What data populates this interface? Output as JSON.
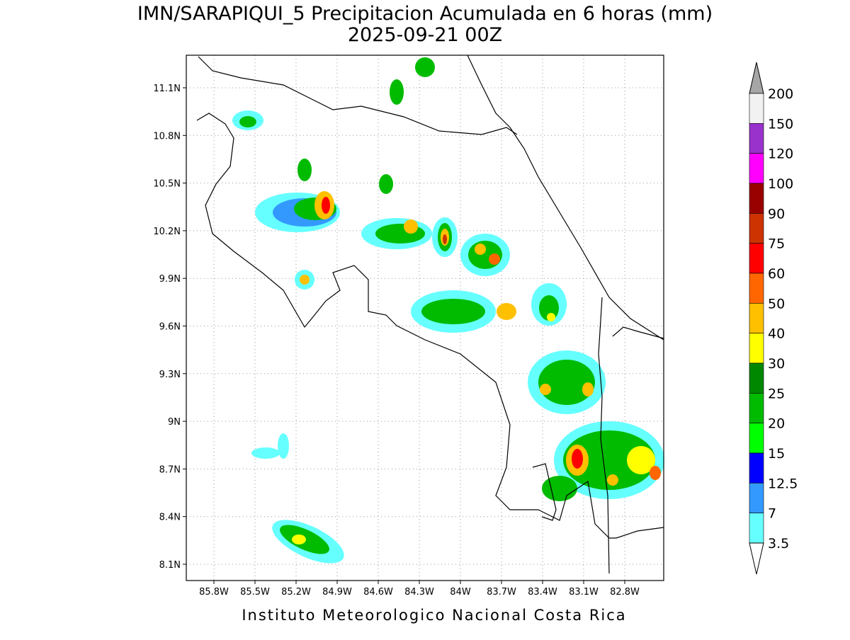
{
  "title": "IMN/SARAPIQUI_5 Precipitacion Acumulada en 6 horas (mm)",
  "subtitle": "2025-09-21 00Z",
  "x_ticks": [
    "85.8W",
    "85.5W",
    "85.2W",
    "84.9W",
    "84.6W",
    "84.3W",
    "84W",
    "83.7W",
    "83.4W",
    "83.1W",
    "82.8W"
  ],
  "y_ticks": [
    "11.1N",
    "10.8N",
    "10.5N",
    "10.2N",
    "9.9N",
    "9.6N",
    "9.3N",
    "9N",
    "8.7N",
    "8.4N",
    "8.1N"
  ],
  "colorbar": {
    "labels": [
      "200",
      "150",
      "120",
      "100",
      "90",
      "75",
      "60",
      "50",
      "40",
      "30",
      "25",
      "20",
      "15",
      "12.5",
      "7",
      "3.5"
    ],
    "colors": [
      "#f2f2f2",
      "#9932cc",
      "#ff00ff",
      "#990000",
      "#cc3300",
      "#ff0000",
      "#ff6600",
      "#ffc000",
      "#ffff00",
      "#008800",
      "#00bb00",
      "#00ff00",
      "#0000ff",
      "#3399ff",
      "#66ffff"
    ],
    "over_color": "#a6a6a6",
    "under_color": "#ffffff"
  },
  "footer": "Instituto Meteorologico Nacional Costa Rica"
}
